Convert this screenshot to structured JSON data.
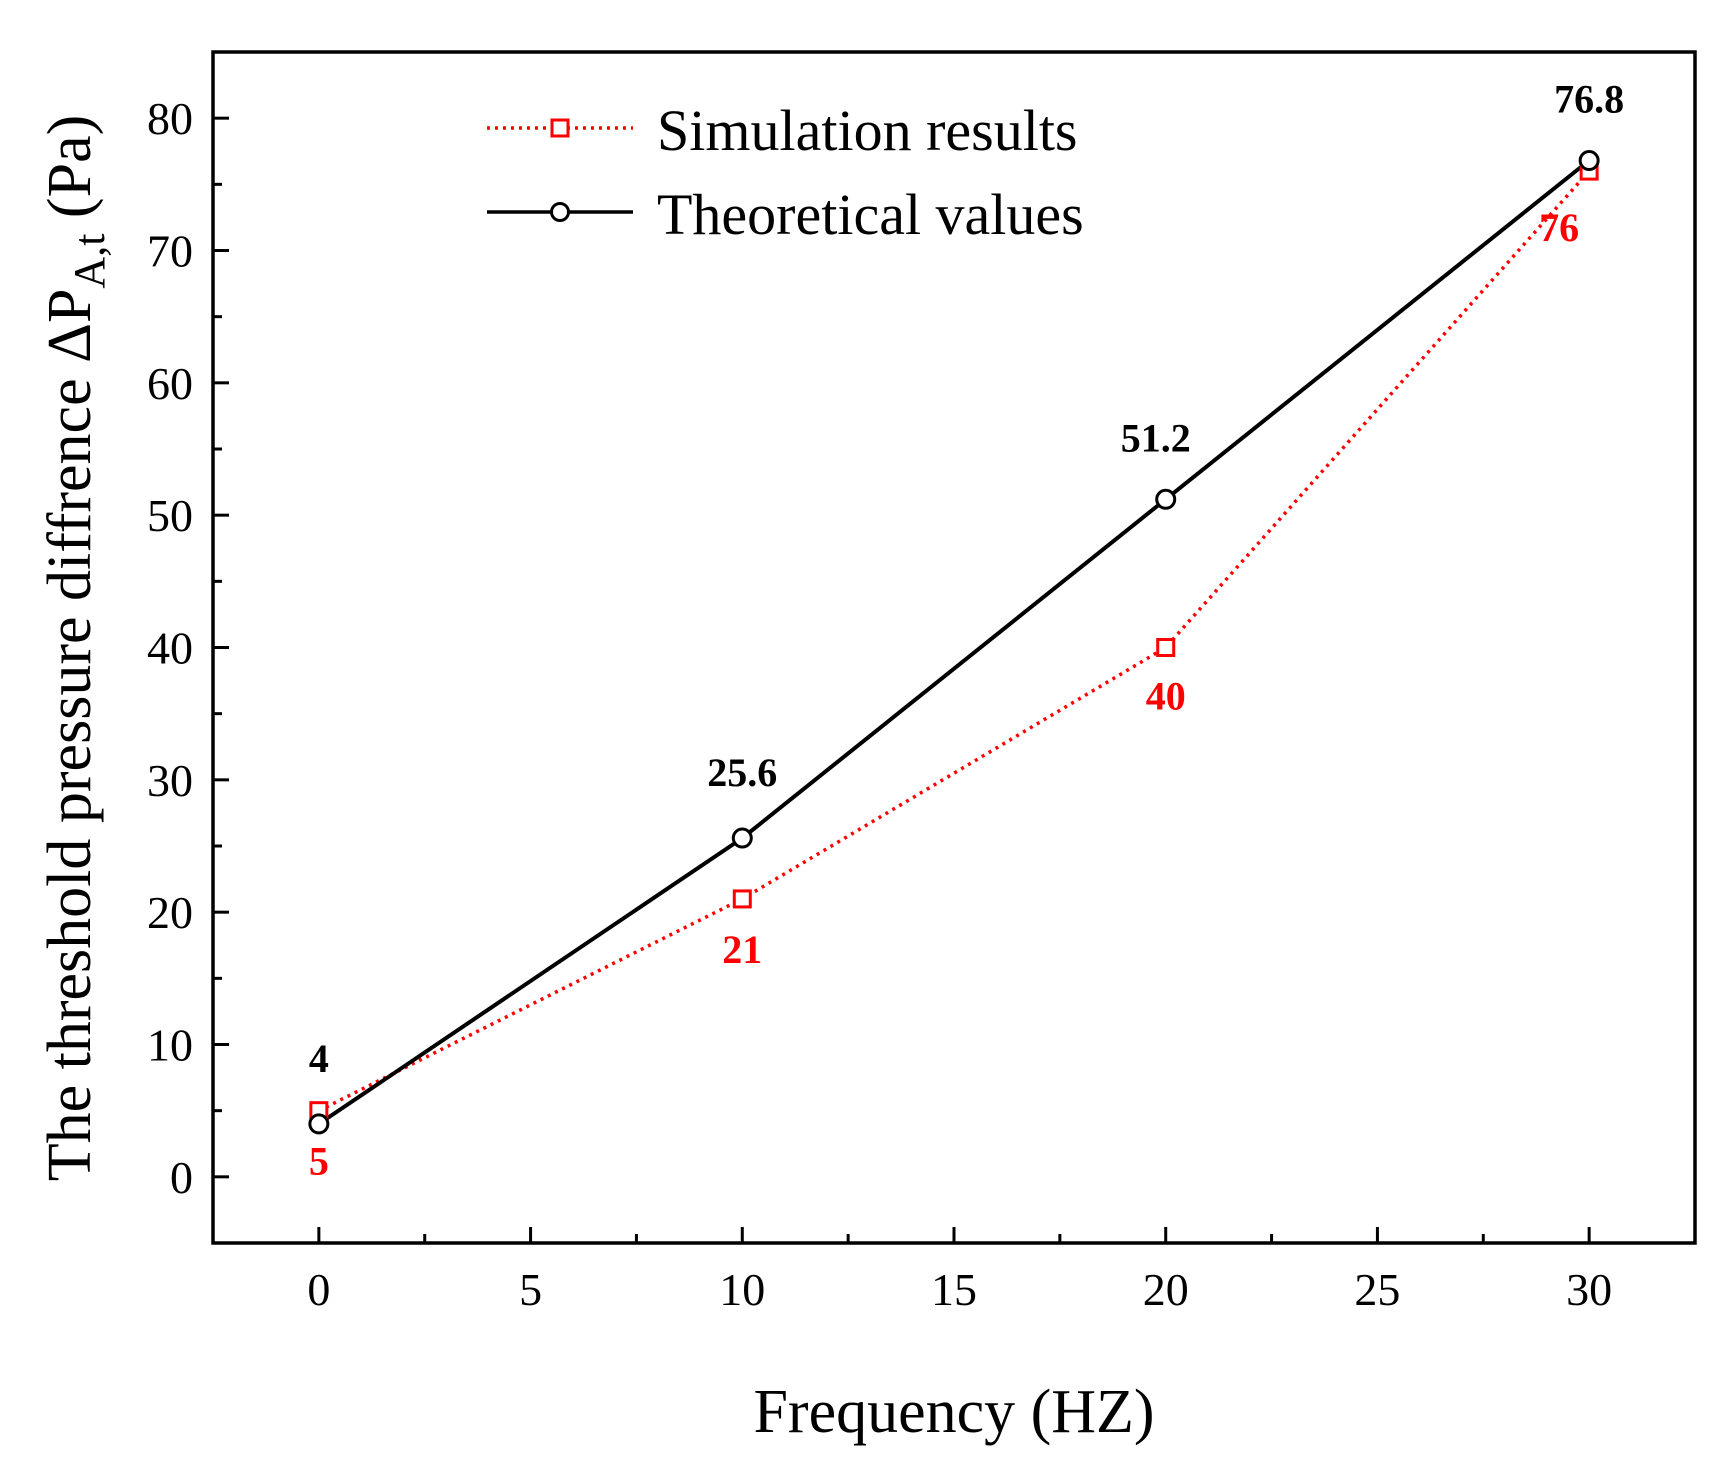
{
  "chart_data": {
    "type": "line",
    "title": "",
    "xlabel": "Frequency (HZ)",
    "ylabel": {
      "prefix": "The threshold pressure diffrence ΔP",
      "subscript": "A,t",
      "suffix": " (Pa)"
    },
    "xlim": [
      -2.5,
      32.5
    ],
    "ylim": [
      -5,
      85
    ],
    "x_ticks": [
      0,
      5,
      10,
      15,
      20,
      25,
      30
    ],
    "y_ticks": [
      0,
      10,
      20,
      30,
      40,
      50,
      60,
      70,
      80
    ],
    "x_minor_ticks": [
      2.5,
      7.5,
      12.5,
      17.5,
      22.5,
      27.5
    ],
    "y_minor_ticks": [
      5,
      15,
      25,
      35,
      45,
      55,
      65,
      75
    ],
    "x": [
      0,
      10,
      20,
      30
    ],
    "series": [
      {
        "name": "Simulation results",
        "values": [
          5,
          21,
          40,
          76
        ],
        "labels": [
          "5",
          "21",
          "40",
          "76"
        ],
        "color": "#ff0000",
        "line_style": "dotted",
        "marker": "square"
      },
      {
        "name": "Theoretical values",
        "values": [
          4,
          25.6,
          51.2,
          76.8
        ],
        "labels": [
          "4",
          "25.6",
          "51.2",
          "76.8"
        ],
        "color": "#000000",
        "line_style": "solid",
        "marker": "circle"
      }
    ],
    "legend_position": "top-left",
    "grid": false
  }
}
